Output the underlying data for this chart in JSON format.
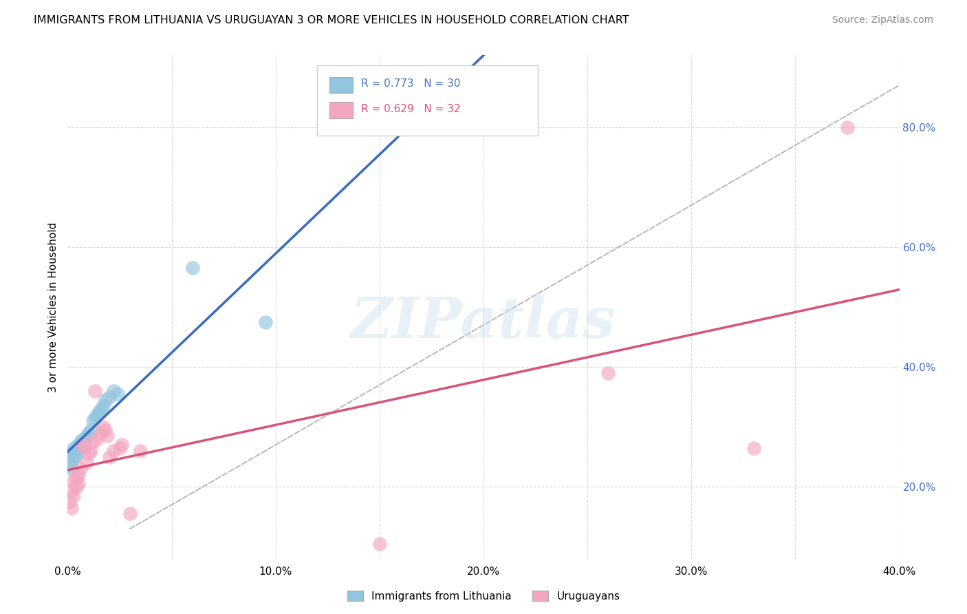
{
  "title": "IMMIGRANTS FROM LITHUANIA VS URUGUAYAN 3 OR MORE VEHICLES IN HOUSEHOLD CORRELATION CHART",
  "source": "Source: ZipAtlas.com",
  "xlabel": "",
  "ylabel": "3 or more Vehicles in Household",
  "xlim": [
    0.0,
    0.4
  ],
  "ylim": [
    0.08,
    0.92
  ],
  "xticks": [
    0.0,
    0.05,
    0.1,
    0.15,
    0.2,
    0.25,
    0.3,
    0.35,
    0.4
  ],
  "xticklabels": [
    "0.0%",
    "",
    "10.0%",
    "",
    "20.0%",
    "",
    "30.0%",
    "",
    "40.0%"
  ],
  "yticks_right": [
    0.2,
    0.4,
    0.6,
    0.8
  ],
  "ytick_right_labels": [
    "20.0%",
    "40.0%",
    "60.0%",
    "80.0%"
  ],
  "legend_r1": "R = 0.773",
  "legend_n1": "N = 30",
  "legend_r2": "R = 0.629",
  "legend_n2": "N = 32",
  "legend_label1": "Immigrants from Lithuania",
  "legend_label2": "Uruguayans",
  "blue_color": "#92c5de",
  "pink_color": "#f4a6c0",
  "blue_line_color": "#3a6bbf",
  "pink_line_color": "#d9527a",
  "blue_scatter": [
    [
      0.001,
      0.23
    ],
    [
      0.002,
      0.245
    ],
    [
      0.002,
      0.255
    ],
    [
      0.002,
      0.235
    ],
    [
      0.003,
      0.25
    ],
    [
      0.003,
      0.26
    ],
    [
      0.003,
      0.265
    ],
    [
      0.004,
      0.258
    ],
    [
      0.004,
      0.252
    ],
    [
      0.005,
      0.27
    ],
    [
      0.005,
      0.26
    ],
    [
      0.006,
      0.275
    ],
    [
      0.006,
      0.268
    ],
    [
      0.007,
      0.28
    ],
    [
      0.008,
      0.272
    ],
    [
      0.009,
      0.285
    ],
    [
      0.01,
      0.29
    ],
    [
      0.011,
      0.295
    ],
    [
      0.012,
      0.31
    ],
    [
      0.013,
      0.315
    ],
    [
      0.014,
      0.32
    ],
    [
      0.015,
      0.325
    ],
    [
      0.016,
      0.33
    ],
    [
      0.017,
      0.335
    ],
    [
      0.018,
      0.345
    ],
    [
      0.02,
      0.35
    ],
    [
      0.022,
      0.36
    ],
    [
      0.024,
      0.355
    ],
    [
      0.06,
      0.565
    ],
    [
      0.095,
      0.475
    ]
  ],
  "pink_scatter": [
    [
      0.001,
      0.175
    ],
    [
      0.002,
      0.195
    ],
    [
      0.002,
      0.165
    ],
    [
      0.003,
      0.21
    ],
    [
      0.003,
      0.185
    ],
    [
      0.004,
      0.2
    ],
    [
      0.004,
      0.215
    ],
    [
      0.005,
      0.205
    ],
    [
      0.005,
      0.22
    ],
    [
      0.006,
      0.23
    ],
    [
      0.007,
      0.27
    ],
    [
      0.008,
      0.265
    ],
    [
      0.009,
      0.24
    ],
    [
      0.01,
      0.255
    ],
    [
      0.011,
      0.26
    ],
    [
      0.012,
      0.275
    ],
    [
      0.013,
      0.36
    ],
    [
      0.014,
      0.28
    ],
    [
      0.016,
      0.29
    ],
    [
      0.017,
      0.3
    ],
    [
      0.018,
      0.295
    ],
    [
      0.019,
      0.285
    ],
    [
      0.02,
      0.25
    ],
    [
      0.022,
      0.26
    ],
    [
      0.025,
      0.265
    ],
    [
      0.026,
      0.27
    ],
    [
      0.03,
      0.155
    ],
    [
      0.035,
      0.26
    ],
    [
      0.15,
      0.105
    ],
    [
      0.26,
      0.39
    ],
    [
      0.33,
      0.265
    ],
    [
      0.375,
      0.8
    ]
  ],
  "diag_line": [
    [
      0.0,
      0.08
    ],
    [
      0.4,
      0.9
    ]
  ],
  "watermark": "ZIPatlas",
  "bg_color": "#ffffff",
  "grid_color": "#d8d8d8"
}
